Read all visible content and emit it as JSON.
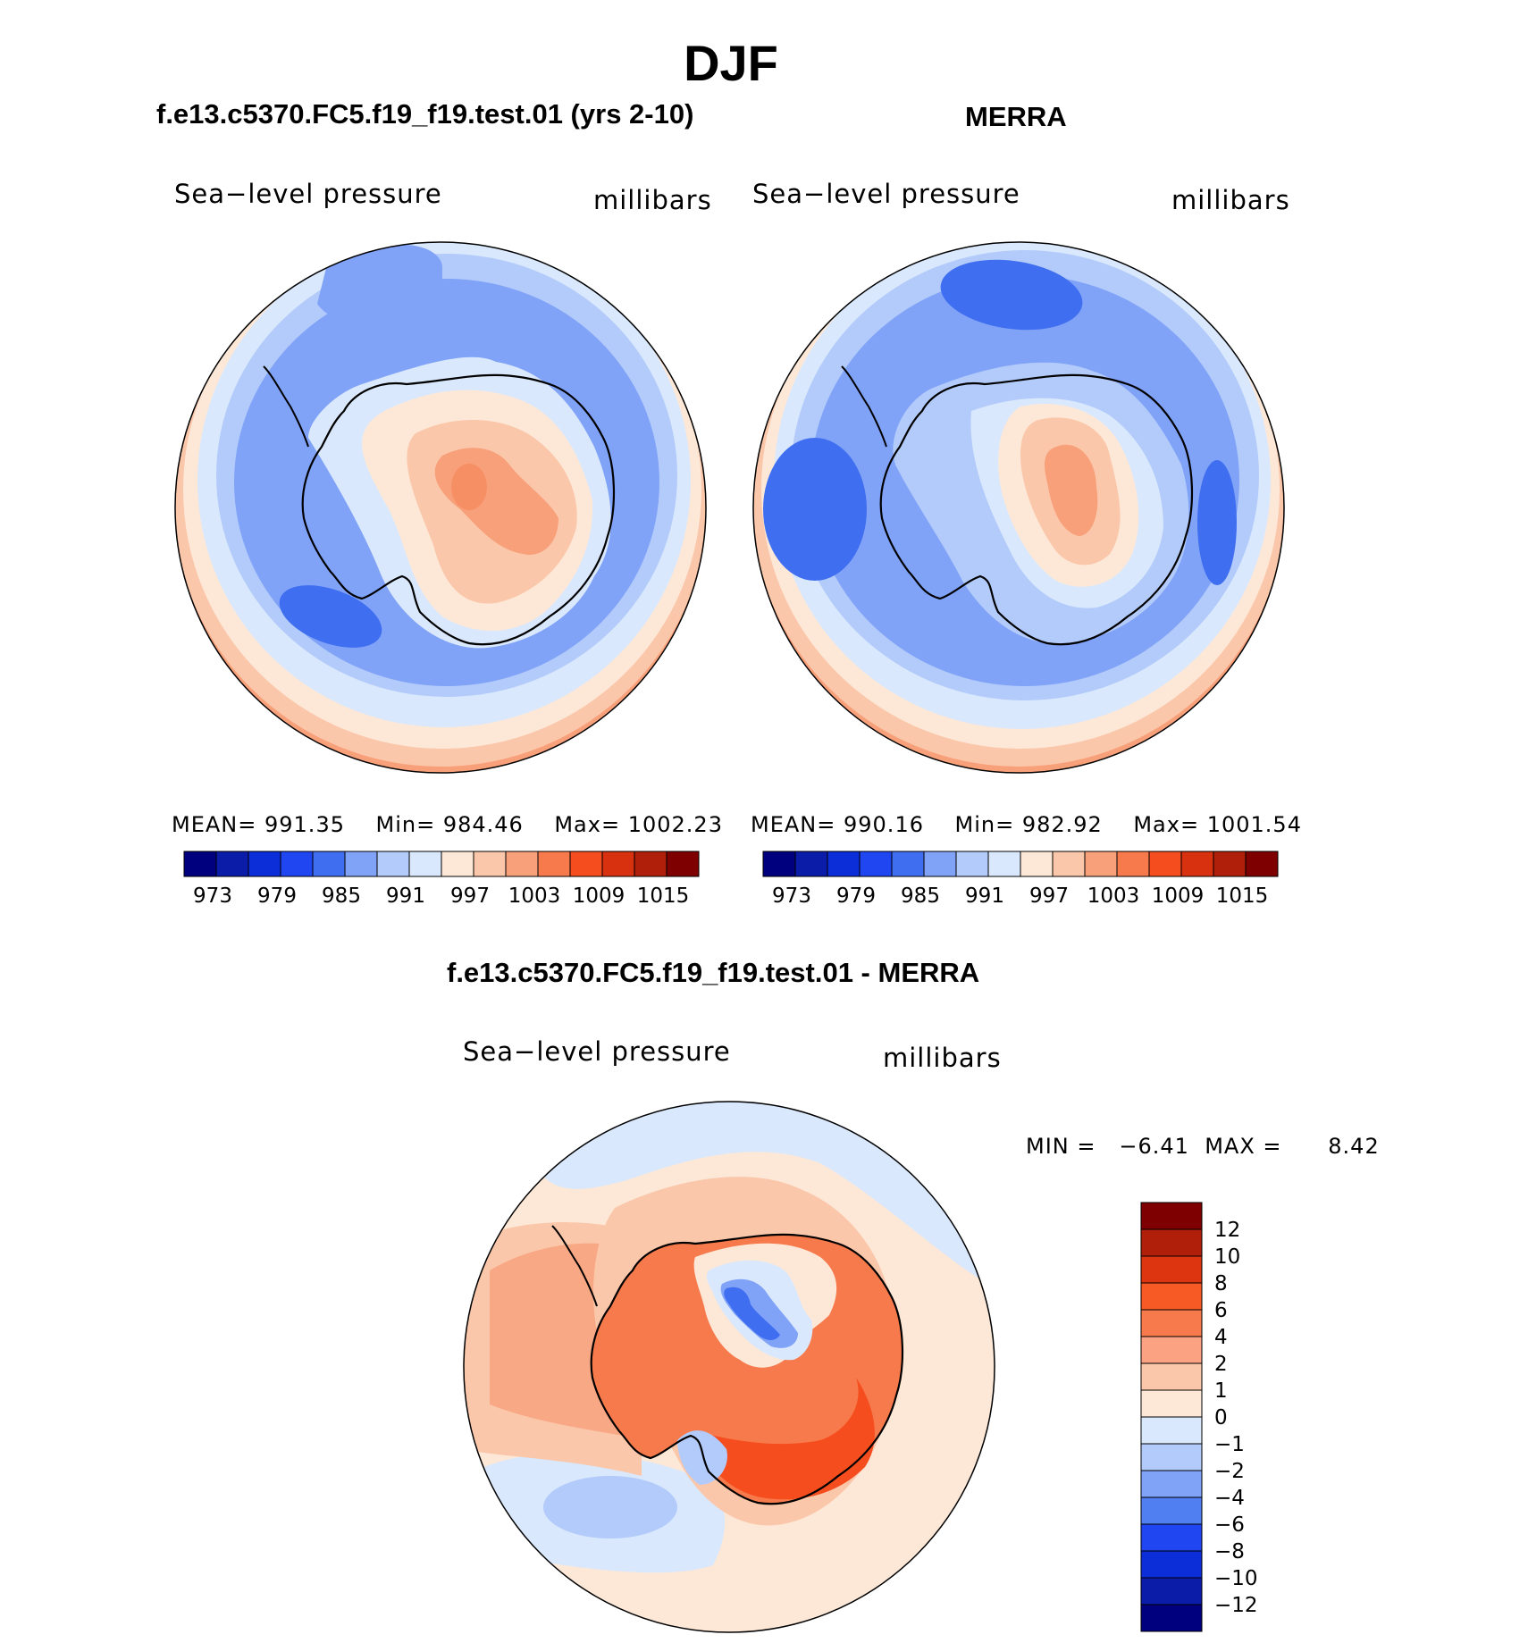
{
  "figure": {
    "title": "DJF"
  },
  "panels": [
    {
      "title": "f.e13.c5370.FC5.f19_f19.test.01 (yrs 2-10)",
      "variable": "Sea−level pressure",
      "units": "millibars",
      "stats": {
        "mean_label": "MEAN=",
        "mean": "991.35",
        "min_label": "Min=",
        "min": "984.46",
        "max_label": "Max=",
        "max": "1002.23"
      }
    },
    {
      "title": "MERRA",
      "variable": "Sea−level pressure",
      "units": "millibars",
      "stats": {
        "mean_label": "MEAN=",
        "mean": "990.16",
        "min_label": "Min=",
        "min": "982.92",
        "max_label": "Max=",
        "max": "1001.54"
      }
    },
    {
      "title": "f.e13.c5370.FC5.f19_f19.test.01 - MERRA",
      "variable": "Sea−level pressure",
      "units": "millibars",
      "stats": {
        "min_label": "MIN =",
        "min": "−6.41",
        "max_label": "MAX =",
        "max": "8.42"
      }
    }
  ],
  "colorbars": {
    "absolute": {
      "colors": [
        "#00007f",
        "#0a1ca8",
        "#0c2ed8",
        "#1f46f0",
        "#3f6ff0",
        "#80a3f8",
        "#b3cbfa",
        "#d9e8fc",
        "#fde8d8",
        "#fbc7aa",
        "#f8a07a",
        "#f77a4c",
        "#f54d1e",
        "#d8310f",
        "#b01f0a",
        "#7f0000"
      ],
      "tick_labels": [
        "973",
        "979",
        "985",
        "991",
        "997",
        "1003",
        "1009",
        "1015"
      ]
    },
    "difference": {
      "colors": [
        "#7f0000",
        "#b01f0a",
        "#dd3510",
        "#f75a25",
        "#f77a4c",
        "#fba283",
        "#fbc7aa",
        "#fde8d8",
        "#d9e8fc",
        "#b3cbfa",
        "#80a3f8",
        "#4f7ff0",
        "#1f46f0",
        "#0c2ed8",
        "#0a1ca8",
        "#00007f"
      ],
      "tick_labels": [
        "12",
        "10",
        "8",
        "6",
        "4",
        "2",
        "1",
        "0",
        "−1",
        "−2",
        "−4",
        "−6",
        "−8",
        "−10",
        "−12"
      ]
    }
  }
}
